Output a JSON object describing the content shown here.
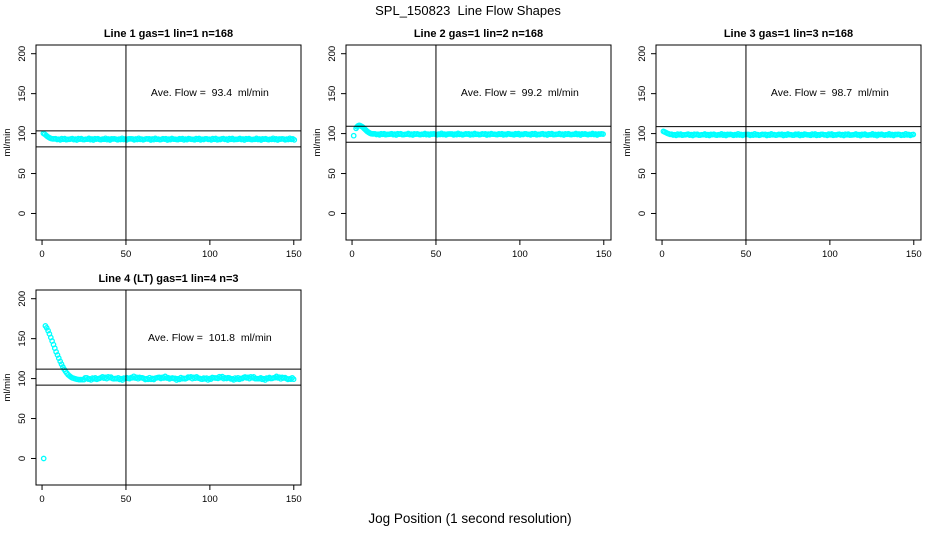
{
  "figure": {
    "title": "SPL_150823  Line Flow Shapes",
    "xlabel": "Jog Position (1 second resolution)",
    "background": "#ffffff",
    "text_color": "#000000"
  },
  "chart_data": {
    "type": "scatter",
    "point_color": "#00ffff",
    "line_color": "#000000",
    "ylabel": "ml/min",
    "x_ticks": [
      0,
      50,
      100,
      150
    ],
    "y_ticks": [
      0,
      50,
      100,
      150,
      200
    ],
    "xlim": [
      -3.6,
      154.3
    ],
    "ylim": [
      -33.2,
      210.9
    ],
    "grid": false,
    "legend": false,
    "panels": [
      {
        "title": "Line 1 gas=1 lin=1 n=168",
        "annotation": "Ave. Flow =  93.4  ml/min",
        "ave_flow_ml_min": 93.4,
        "n": 168,
        "vline_x": 50,
        "hlines": [
          103.4,
          83.4
        ],
        "lead_points": [
          [
            0.8,
            100.3
          ],
          [
            1.6,
            99.2
          ],
          [
            2.4,
            97.8
          ],
          [
            3.2,
            96.4
          ],
          [
            4,
            95.2
          ],
          [
            4.8,
            94.3
          ],
          [
            5.6,
            93.7
          ],
          [
            6.4,
            93.3
          ]
        ],
        "band": {
          "x_start": 7.2,
          "x_end": 150.5,
          "y": 93.0,
          "jitter": 1.1,
          "step": 0.9,
          "wobble_amp": 0,
          "wobble_period": 20
        },
        "outliers": []
      },
      {
        "title": "Line 2 gas=1 lin=2 n=168",
        "annotation": "Ave. Flow =  99.2  ml/min",
        "ave_flow_ml_min": 99.2,
        "n": 168,
        "vline_x": 50,
        "hlines": [
          109.2,
          89.2
        ],
        "lead_points": [
          [
            2.4,
            106.5
          ],
          [
            3,
            108.5
          ],
          [
            3.6,
            109.8
          ],
          [
            4.2,
            110.2
          ],
          [
            4.8,
            110
          ],
          [
            5.4,
            109.4
          ],
          [
            6,
            108.6
          ],
          [
            6.6,
            107.6
          ],
          [
            7.2,
            106.4
          ],
          [
            7.8,
            105.2
          ],
          [
            8.4,
            104
          ],
          [
            9,
            102.9
          ],
          [
            9.6,
            101.9
          ],
          [
            10.2,
            101.1
          ],
          [
            10.8,
            100.4
          ],
          [
            11.4,
            99.9
          ],
          [
            12,
            99.6
          ]
        ],
        "band": {
          "x_start": 12.8,
          "x_end": 150.5,
          "y": 99.2,
          "jitter": 1.0,
          "step": 0.9,
          "wobble_amp": 0,
          "wobble_period": 20
        },
        "outliers": [
          [
            1,
            97.3
          ]
        ]
      },
      {
        "title": "Line 3 gas=1 lin=3 n=168",
        "annotation": "Ave. Flow =  98.7  ml/min",
        "ave_flow_ml_min": 98.7,
        "n": 168,
        "vline_x": 50,
        "hlines": [
          108.7,
          88.7
        ],
        "lead_points": [
          [
            0.8,
            102.8
          ],
          [
            1.6,
            102
          ],
          [
            2.4,
            101.2
          ],
          [
            3.2,
            100.4
          ],
          [
            4,
            99.7
          ]
        ],
        "band": {
          "x_start": 4.8,
          "x_end": 150.5,
          "y": 98.6,
          "jitter": 1.1,
          "step": 0.9,
          "wobble_amp": 0,
          "wobble_period": 20
        },
        "outliers": []
      },
      {
        "title": "Line 4 (LT) gas=1 lin=4 n=3",
        "annotation": "Ave. Flow =  101.8  ml/min",
        "ave_flow_ml_min": 101.8,
        "n": 3,
        "vline_x": 50,
        "hlines": [
          111.8,
          91.8
        ],
        "lead_points": [
          [
            2,
            166
          ],
          [
            2.8,
            163.5
          ],
          [
            3.6,
            160
          ],
          [
            4.4,
            156
          ],
          [
            5.2,
            151.5
          ],
          [
            6,
            147
          ],
          [
            6.8,
            142.5
          ],
          [
            7.6,
            138
          ],
          [
            8.4,
            133.5
          ],
          [
            9.2,
            129.5
          ],
          [
            10,
            125.5
          ],
          [
            10.8,
            121.5
          ],
          [
            11.6,
            118
          ],
          [
            12.4,
            114.5
          ],
          [
            13.2,
            111.5
          ],
          [
            14,
            109
          ],
          [
            14.8,
            106.8
          ],
          [
            15.6,
            104.8
          ],
          [
            16.4,
            103.2
          ],
          [
            17.2,
            102
          ],
          [
            18,
            101
          ],
          [
            19,
            100.2
          ],
          [
            20,
            99.6
          ],
          [
            21,
            99.1
          ],
          [
            22,
            98.8
          ],
          [
            23,
            98.7
          ],
          [
            24,
            98.7
          ],
          [
            25,
            98.8
          ]
        ],
        "band": {
          "x_start": 25.8,
          "x_end": 150.5,
          "y": 100.5,
          "jitter": 1.5,
          "step": 0.85,
          "wobble_amp": 0.9,
          "wobble_period": 17
        },
        "outliers": [
          [
            1,
            0
          ]
        ]
      }
    ]
  }
}
